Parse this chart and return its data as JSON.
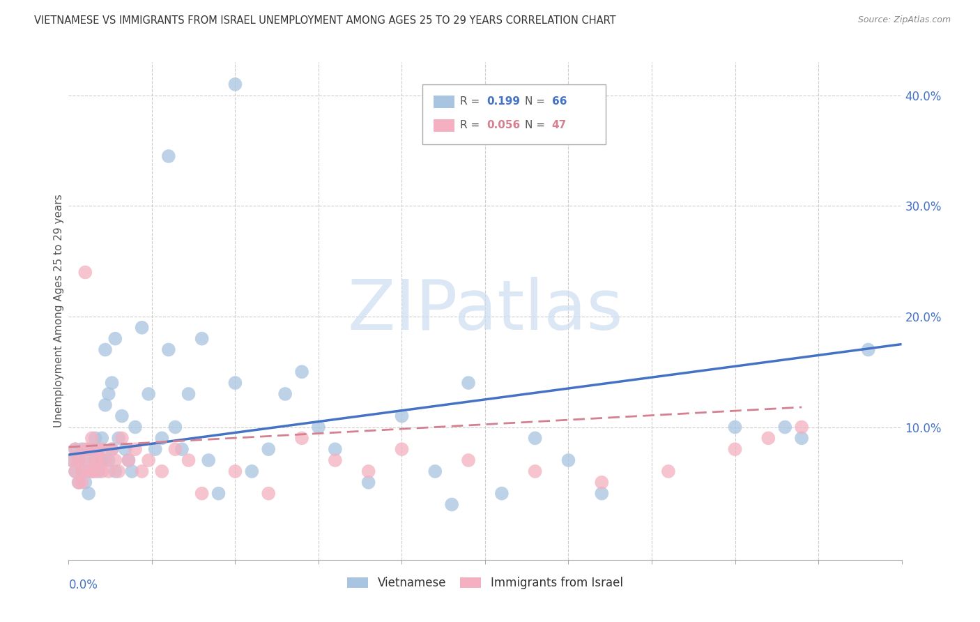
{
  "title": "VIETNAMESE VS IMMIGRANTS FROM ISRAEL UNEMPLOYMENT AMONG AGES 25 TO 29 YEARS CORRELATION CHART",
  "source": "Source: ZipAtlas.com",
  "ylabel": "Unemployment Among Ages 25 to 29 years",
  "xlim": [
    0.0,
    0.25
  ],
  "ylim": [
    -0.02,
    0.43
  ],
  "yticks": [
    0.0,
    0.1,
    0.2,
    0.3,
    0.4
  ],
  "ytick_labels": [
    "",
    "10.0%",
    "20.0%",
    "30.0%",
    "40.0%"
  ],
  "legend_blue_r": "0.199",
  "legend_blue_n": "66",
  "legend_pink_r": "0.056",
  "legend_pink_n": "47",
  "color_blue": "#a8c4e0",
  "color_pink": "#f4b0c0",
  "color_blue_line": "#4472c4",
  "color_pink_line": "#d48090",
  "watermark_color": "#ccddf0",
  "grid_color": "#cccccc",
  "viet_x": [
    0.001,
    0.002,
    0.002,
    0.003,
    0.003,
    0.004,
    0.004,
    0.005,
    0.005,
    0.006,
    0.006,
    0.007,
    0.007,
    0.008,
    0.008,
    0.009,
    0.009,
    0.01,
    0.01,
    0.011,
    0.011,
    0.012,
    0.012,
    0.013,
    0.013,
    0.014,
    0.014,
    0.015,
    0.016,
    0.017,
    0.018,
    0.019,
    0.02,
    0.022,
    0.024,
    0.026,
    0.028,
    0.03,
    0.032,
    0.034,
    0.036,
    0.04,
    0.042,
    0.045,
    0.05,
    0.055,
    0.06,
    0.065,
    0.07,
    0.075,
    0.08,
    0.09,
    0.1,
    0.11,
    0.115,
    0.12,
    0.13,
    0.14,
    0.15,
    0.16,
    0.05,
    0.03,
    0.2,
    0.215,
    0.22,
    0.24
  ],
  "viet_y": [
    0.07,
    0.06,
    0.08,
    0.05,
    0.07,
    0.06,
    0.08,
    0.05,
    0.07,
    0.04,
    0.08,
    0.06,
    0.08,
    0.07,
    0.09,
    0.06,
    0.08,
    0.07,
    0.09,
    0.17,
    0.12,
    0.07,
    0.13,
    0.08,
    0.14,
    0.06,
    0.18,
    0.09,
    0.11,
    0.08,
    0.07,
    0.06,
    0.1,
    0.19,
    0.13,
    0.08,
    0.09,
    0.17,
    0.1,
    0.08,
    0.13,
    0.18,
    0.07,
    0.04,
    0.14,
    0.06,
    0.08,
    0.13,
    0.15,
    0.1,
    0.08,
    0.05,
    0.11,
    0.06,
    0.03,
    0.14,
    0.04,
    0.09,
    0.07,
    0.04,
    0.41,
    0.345,
    0.1,
    0.1,
    0.09,
    0.17
  ],
  "israel_x": [
    0.001,
    0.002,
    0.002,
    0.003,
    0.003,
    0.004,
    0.004,
    0.005,
    0.005,
    0.006,
    0.006,
    0.007,
    0.007,
    0.008,
    0.008,
    0.009,
    0.009,
    0.01,
    0.01,
    0.011,
    0.012,
    0.013,
    0.014,
    0.015,
    0.016,
    0.018,
    0.02,
    0.022,
    0.024,
    0.028,
    0.032,
    0.036,
    0.04,
    0.05,
    0.06,
    0.07,
    0.08,
    0.09,
    0.1,
    0.12,
    0.14,
    0.16,
    0.18,
    0.2,
    0.21,
    0.22,
    0.005
  ],
  "israel_y": [
    0.07,
    0.06,
    0.08,
    0.05,
    0.07,
    0.06,
    0.05,
    0.07,
    0.08,
    0.06,
    0.08,
    0.06,
    0.09,
    0.07,
    0.06,
    0.08,
    0.07,
    0.06,
    0.08,
    0.07,
    0.06,
    0.08,
    0.07,
    0.06,
    0.09,
    0.07,
    0.08,
    0.06,
    0.07,
    0.06,
    0.08,
    0.07,
    0.04,
    0.06,
    0.04,
    0.09,
    0.07,
    0.06,
    0.08,
    0.07,
    0.06,
    0.05,
    0.06,
    0.08,
    0.09,
    0.1,
    0.24
  ],
  "viet_line_x": [
    0.0,
    0.25
  ],
  "viet_line_y": [
    0.075,
    0.175
  ],
  "israel_line_x": [
    0.0,
    0.22
  ],
  "israel_line_y": [
    0.082,
    0.118
  ]
}
